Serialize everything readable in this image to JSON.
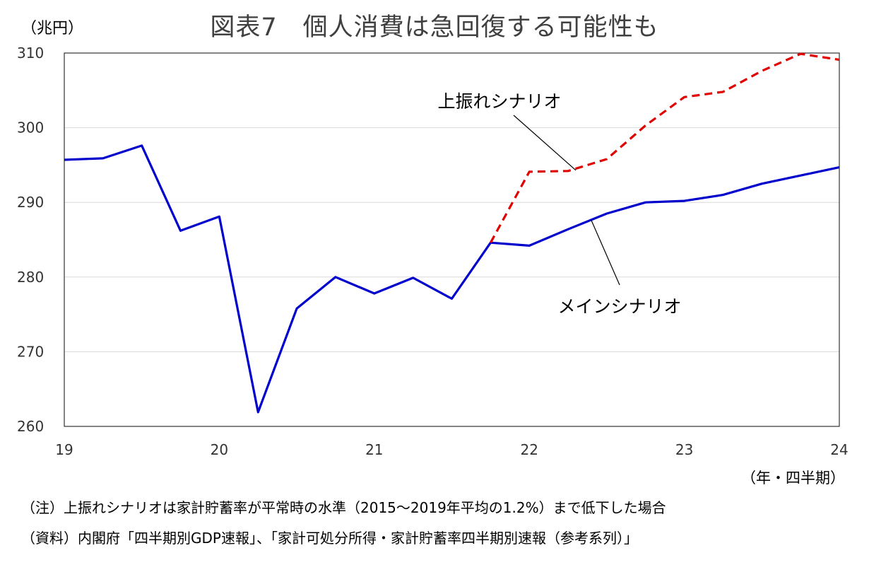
{
  "title": "図表7　個人消費は急回復する可能性も",
  "y_unit": "（兆円）",
  "x_unit": "（年・四半期）",
  "note": "（注）上振れシナリオは家計貯蓄率が平常時の水準（2015～2019年平均の1.2%）まで低下した場合",
  "source": "（資料）内閣府「四半期別GDP速報」、「家計可処分所得・家計貯蓄率四半期別速報（参考系列）」",
  "chart_data": {
    "type": "line",
    "title": "図表7　個人消費は急回復する可能性も",
    "xlabel": "（年・四半期）",
    "ylabel": "（兆円）",
    "ylim": [
      260,
      310
    ],
    "yticks": [
      260,
      270,
      280,
      290,
      300,
      310
    ],
    "xlim": [
      19,
      24
    ],
    "xticks": [
      "19",
      "20",
      "21",
      "22",
      "23",
      "24"
    ],
    "grid": true,
    "series": [
      {
        "name": "メインシナリオ",
        "color": "#0000cc",
        "dash": "solid",
        "x": [
          19.0,
          19.25,
          19.5,
          19.75,
          20.0,
          20.25,
          20.5,
          20.75,
          21.0,
          21.25,
          21.5,
          21.75,
          22.0,
          22.25,
          22.5,
          22.75,
          23.0,
          23.25,
          23.5,
          23.75,
          24.0
        ],
        "values": [
          295.7,
          295.9,
          297.6,
          286.2,
          288.1,
          261.9,
          275.8,
          280.0,
          277.8,
          279.9,
          277.1,
          284.6,
          284.2,
          286.4,
          288.5,
          290.0,
          290.2,
          291.0,
          292.5,
          293.6,
          294.7
        ]
      },
      {
        "name": "上振れシナリオ",
        "color": "#e00000",
        "dash": "dashed",
        "x": [
          21.75,
          22.0,
          22.25,
          22.5,
          22.75,
          23.0,
          23.25,
          23.5,
          23.75,
          24.0
        ],
        "values": [
          284.6,
          294.1,
          294.2,
          295.8,
          300.3,
          304.1,
          304.8,
          307.6,
          309.9,
          309.1
        ]
      }
    ],
    "annotations": [
      {
        "text": "上振れシナリオ",
        "series": "上振れシナリオ",
        "x": 22.3,
        "value": 294.3
      },
      {
        "text": "メインシナリオ",
        "series": "メインシナリオ",
        "x": 22.4,
        "value": 287.6
      }
    ]
  }
}
